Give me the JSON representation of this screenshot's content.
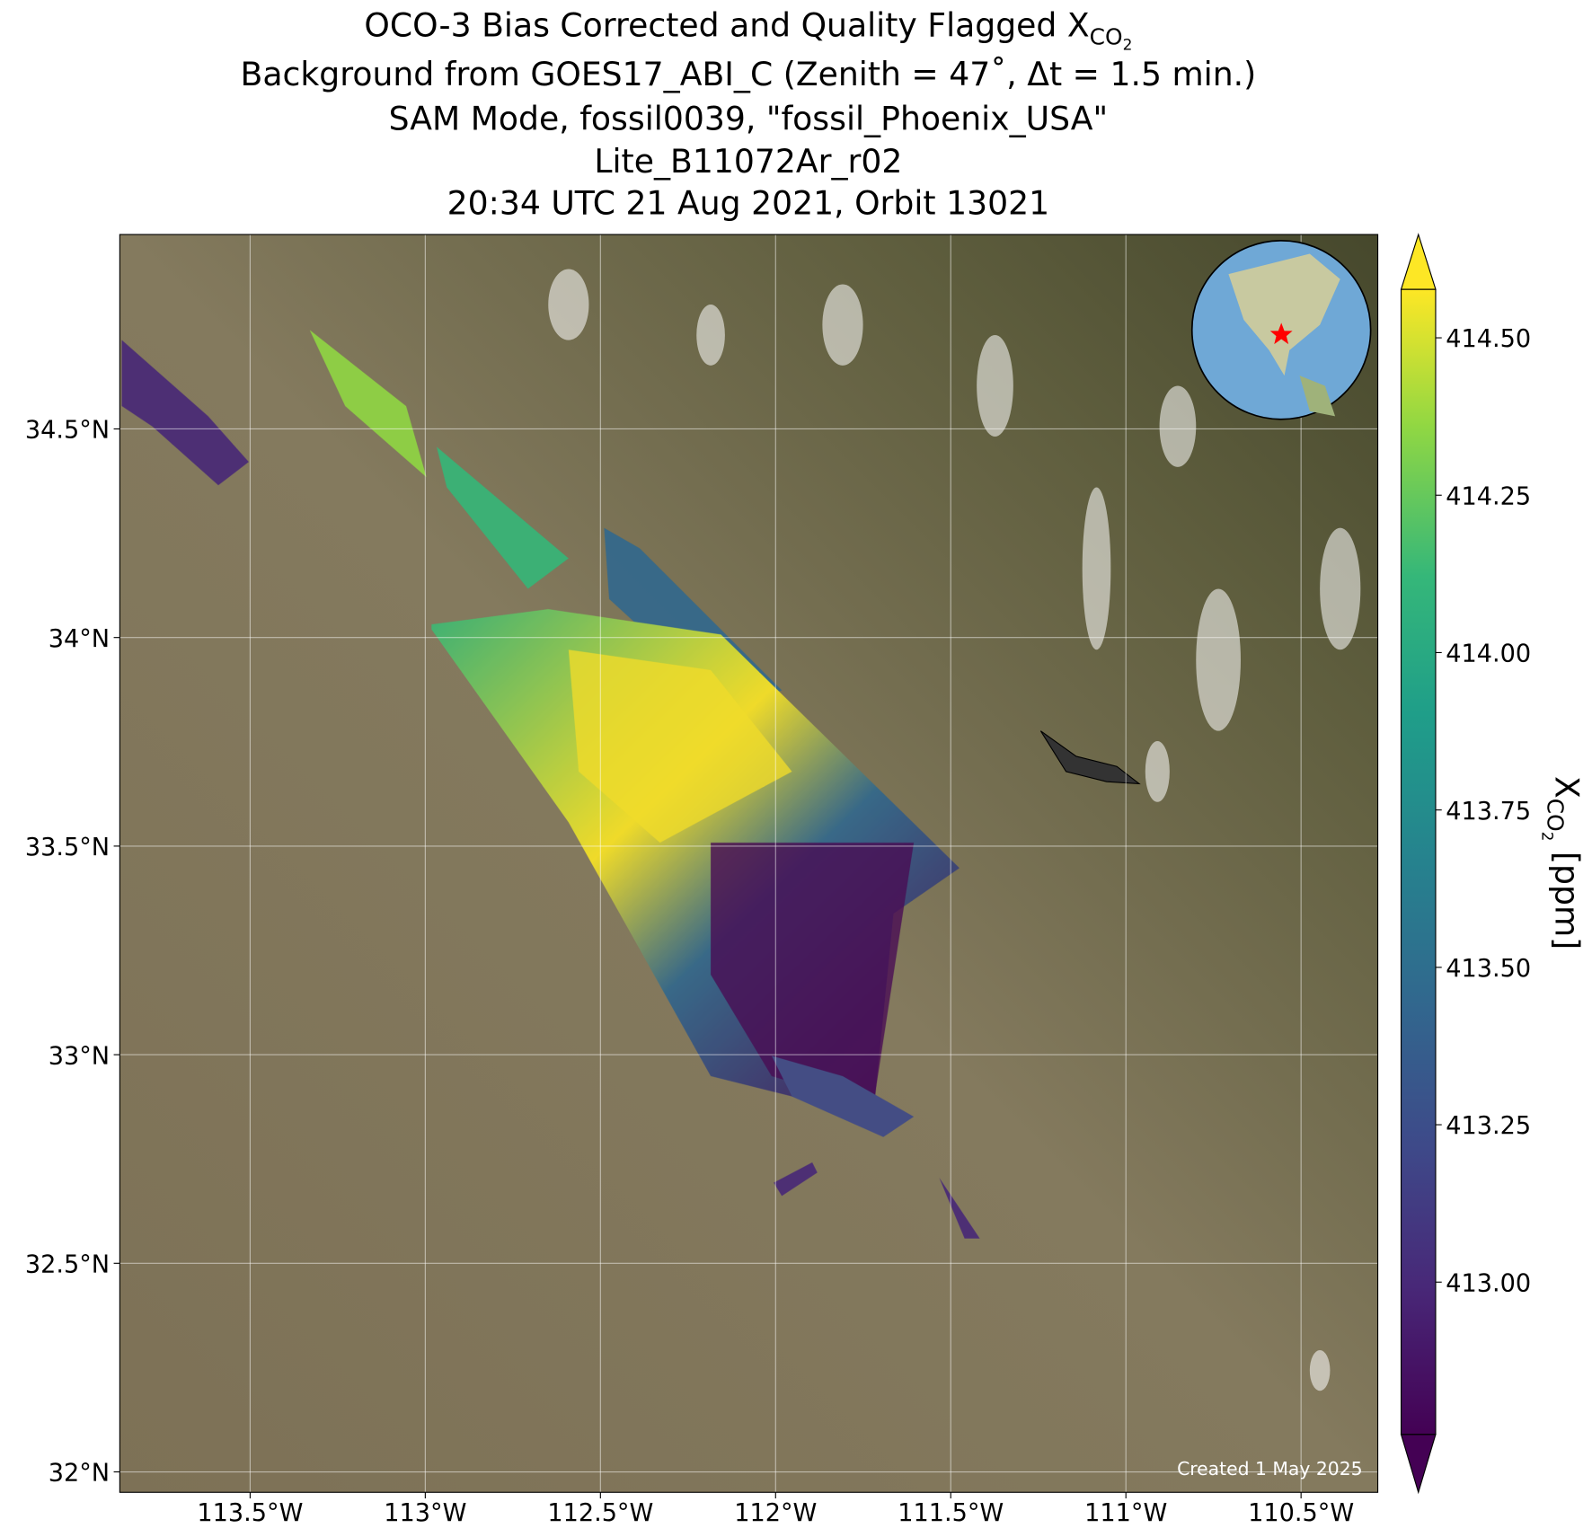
{
  "chart_data": {
    "type": "map",
    "title": {
      "line1": "OCO-3 Bias Corrected and Quality Flagged X",
      "line1_sub": "CO",
      "line1_subsub": "2",
      "line2": "Background from GOES17_ABI_C (Zenith = 47˚, Δt =  1.5 min.)",
      "line3": "SAM Mode, fossil0039, \"fossil_Phoenix_USA\"",
      "line4": "Lite_B11072Ar_r02",
      "line5": "20:34 UTC 21 Aug 2021, Orbit 13021"
    },
    "xlim": [
      -113.872,
      -110.281
    ],
    "ylim": [
      31.951,
      34.966
    ],
    "xticks": [
      {
        "value": -113.5,
        "label": "113.5°W"
      },
      {
        "value": -113,
        "label": "113°W"
      },
      {
        "value": -112.5,
        "label": "112.5°W"
      },
      {
        "value": -112,
        "label": "112°W"
      },
      {
        "value": -111.5,
        "label": "111.5°W"
      },
      {
        "value": -111,
        "label": "111°W"
      },
      {
        "value": -110.5,
        "label": "110.5°W"
      }
    ],
    "yticks": [
      {
        "value": 34.5,
        "label": "34.5°N"
      },
      {
        "value": 34,
        "label": "34°N"
      },
      {
        "value": 33.5,
        "label": "33.5°N"
      },
      {
        "value": 33,
        "label": "33°N"
      },
      {
        "value": 32.5,
        "label": "32.5°N"
      },
      {
        "value": 32,
        "label": "32°N"
      }
    ],
    "grid": true,
    "colorbar": {
      "clim": [
        412.758,
        414.577
      ],
      "ticks": [
        {
          "value": 414.5,
          "label": "414.50"
        },
        {
          "value": 414.25,
          "label": "414.25"
        },
        {
          "value": 414,
          "label": "414.00"
        },
        {
          "value": 413.75,
          "label": "413.75"
        },
        {
          "value": 413.5,
          "label": "413.50"
        },
        {
          "value": 413.25,
          "label": "413.25"
        },
        {
          "value": 413,
          "label": "413.00"
        }
      ],
      "label": "X",
      "label_sub": "CO",
      "label_subsub": "2",
      "label_unit": " [ppm]"
    },
    "credit": "Created 1 May 2025"
  }
}
